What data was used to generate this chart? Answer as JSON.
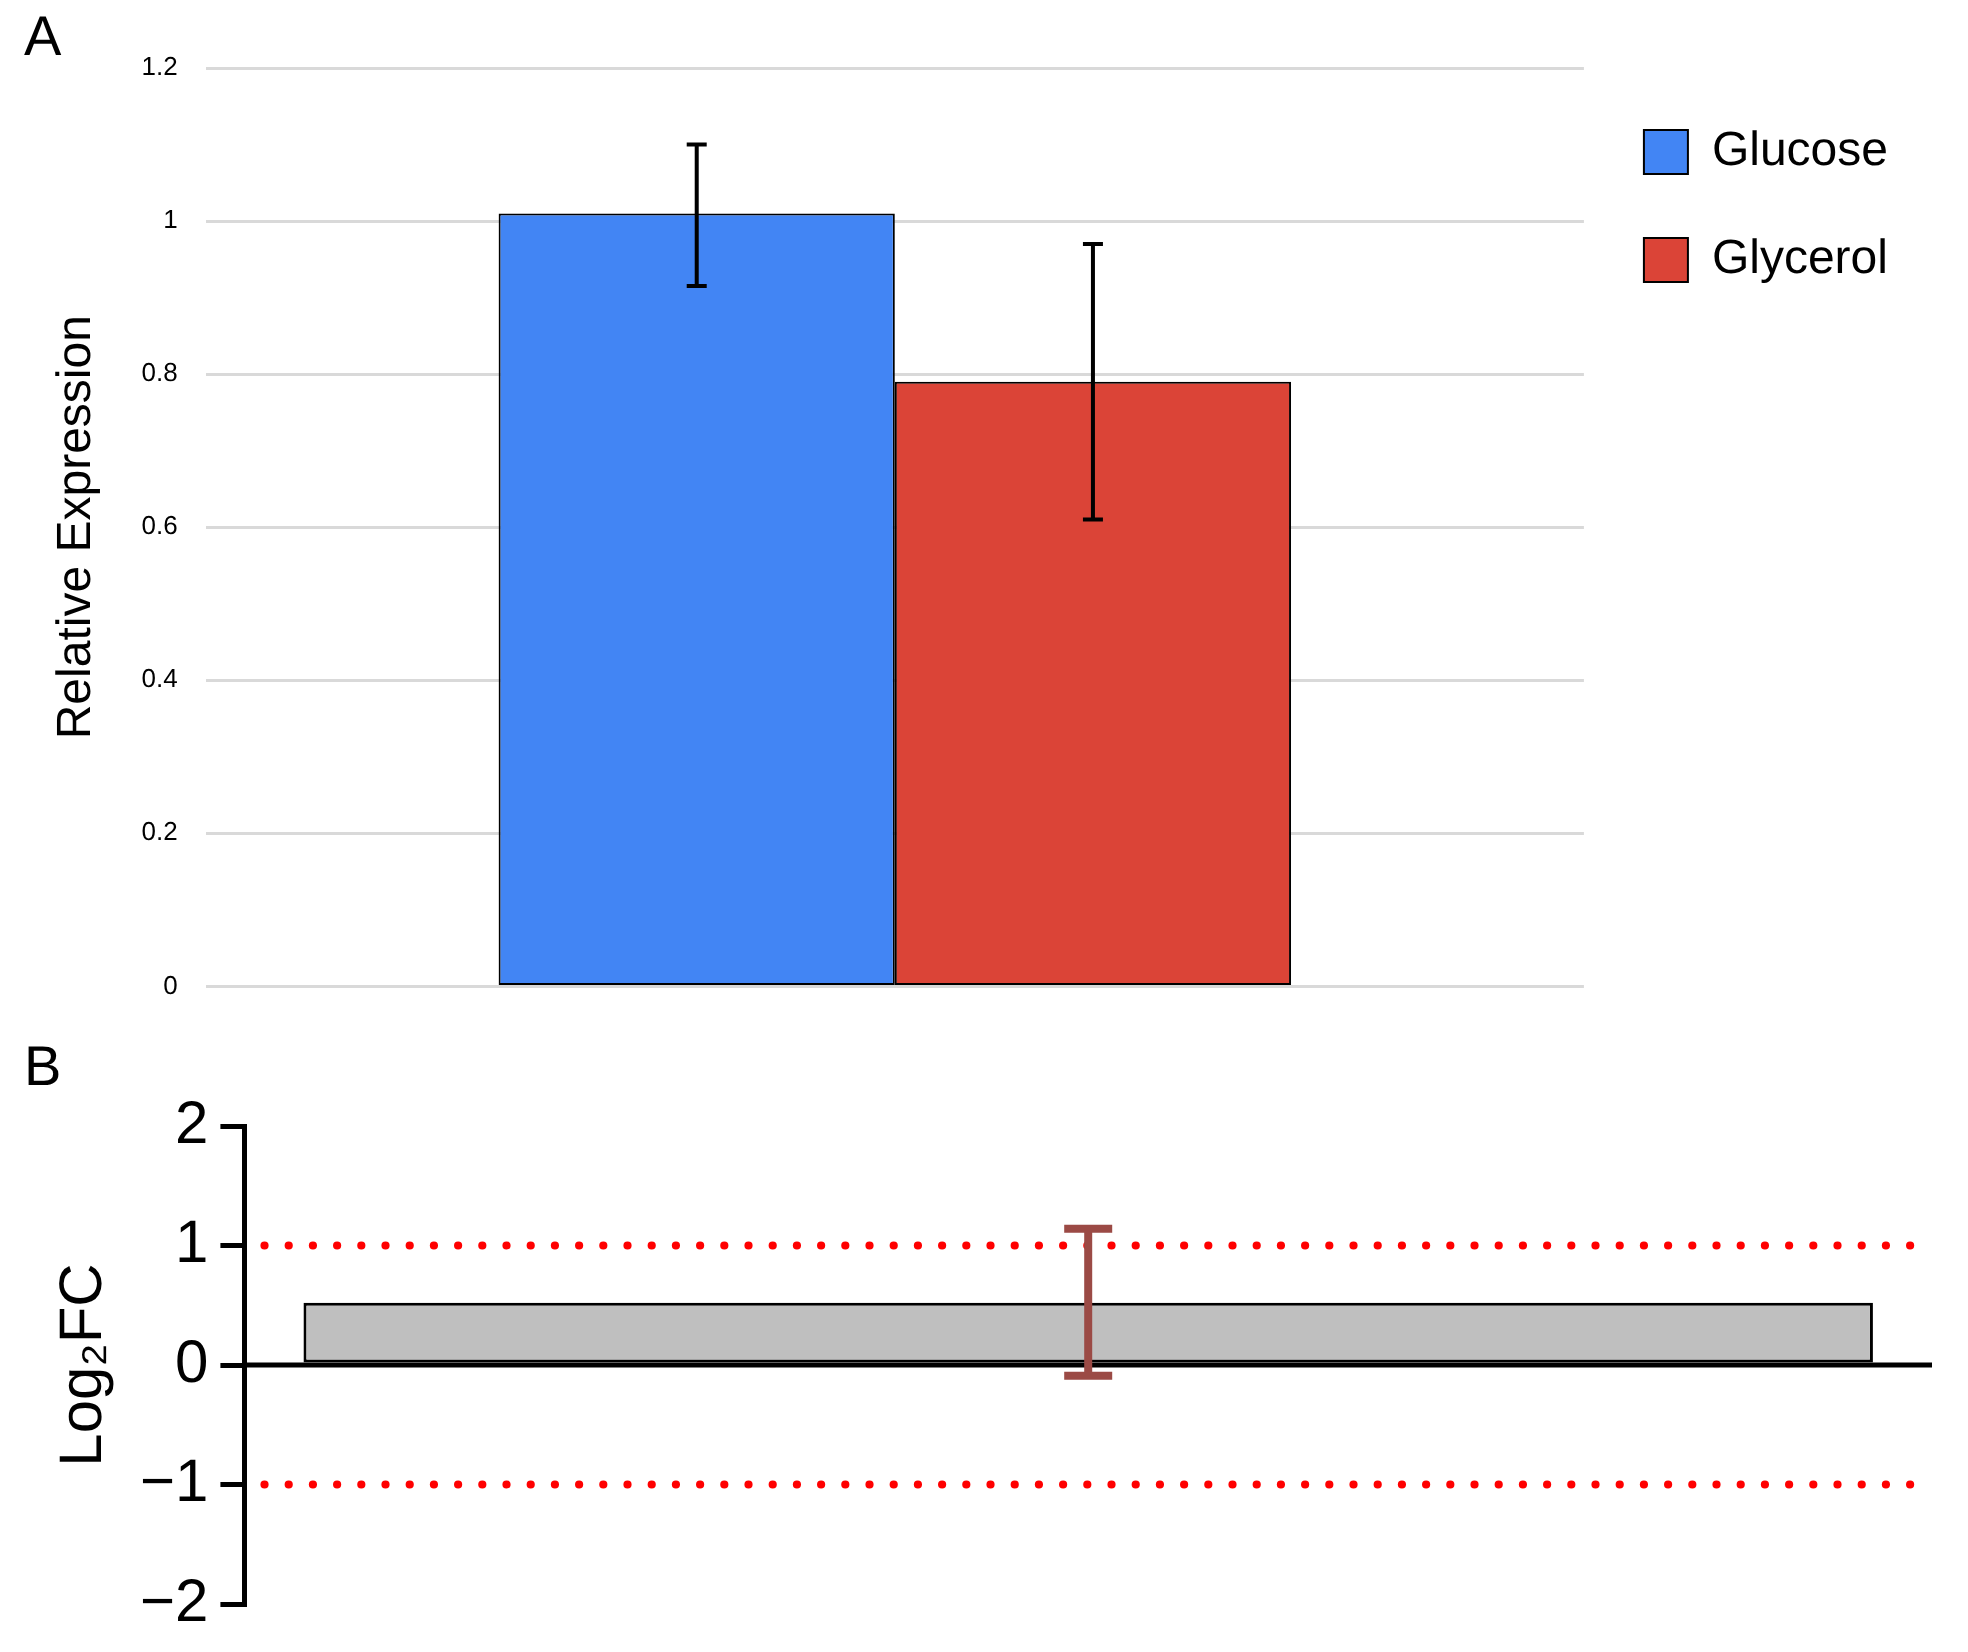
{
  "chart_data": [
    {
      "type": "bar",
      "annotations": [
        "A"
      ],
      "ylabel": "Relative Expression",
      "categories": [
        null
      ],
      "series": [
        {
          "name": "Glucose",
          "color": "#4285f4",
          "values": [
            1.01
          ],
          "errors": [
            [
              0.915,
              1.1
            ]
          ]
        },
        {
          "name": "Glycerol",
          "color": "#db4437",
          "values": [
            0.79
          ],
          "errors": [
            [
              0.61,
              0.97
            ]
          ]
        }
      ],
      "ylim": [
        0,
        1.2
      ],
      "yticks": [
        0,
        0.2,
        0.4,
        0.6,
        0.8,
        1,
        1.2
      ],
      "grid": "y",
      "legend": "top right"
    },
    {
      "type": "bar",
      "annotations": [
        "B"
      ],
      "ylabel": "Log₂FC",
      "categories": [
        null
      ],
      "series": [
        {
          "color": "#bfbfbf",
          "values": [
            0.52
          ],
          "errors": [
            [
              -0.09,
              1.14
            ]
          ]
        }
      ],
      "ylim": [
        -2,
        2
      ],
      "yticks": [
        2,
        1,
        0,
        {
          "value": -1,
          "label": "−1"
        },
        {
          "value": -2,
          "label": "−2"
        }
      ],
      "ref_lines": [
        {
          "axis": "y",
          "value": 1,
          "color": "#ff0000",
          "line_style": "dotted"
        },
        {
          "axis": "y",
          "value": -1,
          "color": "#ff0000",
          "line_style": "dotted"
        }
      ]
    }
  ]
}
